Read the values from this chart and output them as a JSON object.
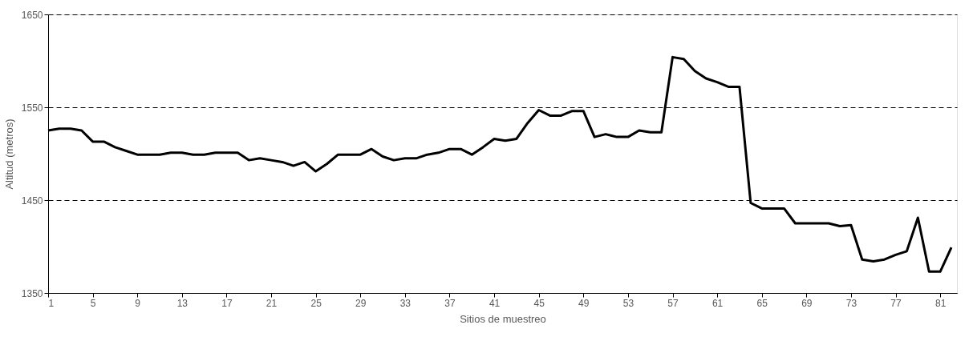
{
  "chart_data": {
    "type": "line",
    "xlabel": "Sitios de muestreo",
    "ylabel": "Altitud (metros)",
    "x": [
      1,
      2,
      3,
      4,
      5,
      6,
      7,
      8,
      9,
      10,
      11,
      12,
      13,
      14,
      15,
      16,
      17,
      18,
      19,
      20,
      21,
      22,
      23,
      24,
      25,
      26,
      27,
      28,
      29,
      30,
      31,
      32,
      33,
      34,
      35,
      36,
      37,
      38,
      39,
      40,
      41,
      42,
      43,
      44,
      45,
      46,
      47,
      48,
      49,
      50,
      51,
      52,
      53,
      54,
      55,
      56,
      57,
      58,
      59,
      60,
      61,
      62,
      63,
      64,
      65,
      66,
      67,
      68,
      69,
      70,
      71,
      72,
      73,
      74,
      75,
      76,
      77,
      78,
      79,
      80,
      81,
      82
    ],
    "series": [
      {
        "color": "#000000",
        "values": [
          1525,
          1527,
          1527,
          1525,
          1513,
          1513,
          1507,
          1503,
          1499,
          1499,
          1499,
          1501,
          1501,
          1499,
          1499,
          1501,
          1501,
          1501,
          1493,
          1495,
          1493,
          1491,
          1487,
          1491,
          1481,
          1489,
          1499,
          1499,
          1499,
          1505,
          1497,
          1493,
          1495,
          1495,
          1499,
          1501,
          1505,
          1505,
          1499,
          1507,
          1516,
          1514,
          1516,
          1533,
          1547,
          1541,
          1541,
          1546,
          1546,
          1518,
          1521,
          1518,
          1518,
          1525,
          1523,
          1523,
          1604,
          1602,
          1589,
          1581,
          1577,
          1572,
          1572,
          1447,
          1441,
          1441,
          1441,
          1425,
          1425,
          1425,
          1425,
          1422,
          1423,
          1386,
          1384,
          1386,
          1391,
          1395,
          1431,
          1373,
          1373,
          1399
        ]
      }
    ],
    "xlim": [
      1,
      82.5
    ],
    "xticks": [
      1,
      5,
      9,
      13,
      17,
      21,
      25,
      29,
      33,
      37,
      41,
      45,
      49,
      53,
      57,
      61,
      65,
      69,
      73,
      77,
      81
    ],
    "ylim": [
      1350,
      1650
    ],
    "yticks": [
      1350,
      1450,
      1550,
      1650
    ],
    "grid": "y",
    "marker": "none",
    "line_style": "solid"
  }
}
